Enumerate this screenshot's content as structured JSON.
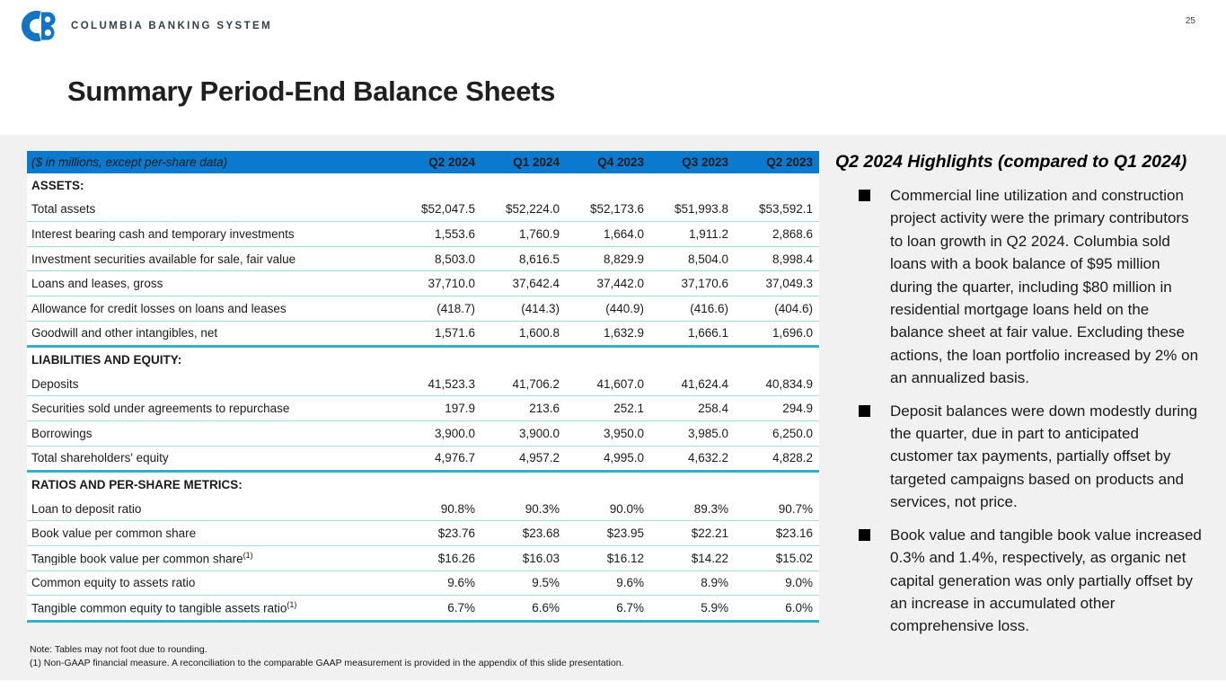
{
  "page": {
    "number": "25"
  },
  "logo": {
    "mark": "CB",
    "text": "COLUMBIA BANKING SYSTEM"
  },
  "title": "Summary Period-End Balance Sheets",
  "colors": {
    "header_blue": "#0b79cd",
    "divider_teal": "#31b2cb",
    "row_divider_blue": "#a6d9ea",
    "logo_blue": "#1474c4",
    "panel_gray": "#f1f1f2",
    "text": "#1b1b1b"
  },
  "table": {
    "unit_note": "($ in millions, except per-share data)",
    "columns": [
      "Q2 2024",
      "Q1 2024",
      "Q4 2023",
      "Q3 2023",
      "Q2 2023"
    ],
    "sections": [
      {
        "label": "ASSETS:",
        "rows": [
          {
            "label": "Total assets",
            "values": [
              "$52,047.5",
              "$52,224.0",
              "$52,173.6",
              "$51,993.8",
              "$53,592.1"
            ]
          },
          {
            "label": "Interest bearing cash and temporary investments",
            "values": [
              "1,553.6",
              "1,760.9",
              "1,664.0",
              "1,911.2",
              "2,868.6"
            ]
          },
          {
            "label": "Investment securities available for sale, fair value",
            "values": [
              "8,503.0",
              "8,616.5",
              "8,829.9",
              "8,504.0",
              "8,998.4"
            ]
          },
          {
            "label": "Loans and leases, gross",
            "values": [
              "37,710.0",
              "37,642.4",
              "37,442.0",
              "37,170.6",
              "37,049.3"
            ]
          },
          {
            "label": "Allowance for credit losses on loans and leases",
            "values": [
              "(418.7)",
              "(414.3)",
              "(440.9)",
              "(416.6)",
              "(404.6)"
            ]
          },
          {
            "label": "Goodwill and other intangibles, net",
            "values": [
              "1,571.6",
              "1,600.8",
              "1,632.9",
              "1,666.1",
              "1,696.0"
            ]
          }
        ]
      },
      {
        "label": "LIABILITIES AND EQUITY:",
        "rows": [
          {
            "label": "Deposits",
            "values": [
              "41,523.3",
              "41,706.2",
              "41,607.0",
              "41,624.4",
              "40,834.9"
            ]
          },
          {
            "label": "Securities sold under agreements to repurchase",
            "values": [
              "197.9",
              "213.6",
              "252.1",
              "258.4",
              "294.9"
            ]
          },
          {
            "label": "Borrowings",
            "values": [
              "3,900.0",
              "3,900.0",
              "3,950.0",
              "3,985.0",
              "6,250.0"
            ]
          },
          {
            "label": "Total shareholders' equity",
            "values": [
              "4,976.7",
              "4,957.2",
              "4,995.0",
              "4,632.2",
              "4,828.2"
            ]
          }
        ]
      },
      {
        "label": "RATIOS AND PER-SHARE METRICS:",
        "rows": [
          {
            "label": "Loan to deposit ratio",
            "values": [
              "90.8%",
              "90.3%",
              "90.0%",
              "89.3%",
              "90.7%"
            ]
          },
          {
            "label": "Book value per common share",
            "values": [
              "$23.76",
              "$23.68",
              "$23.95",
              "$22.21",
              "$23.16"
            ]
          },
          {
            "label": "Tangible book value per common share",
            "sup": "(1)",
            "values": [
              "$16.26",
              "$16.03",
              "$16.12",
              "$14.22",
              "$15.02"
            ]
          },
          {
            "label": "Common equity to assets ratio",
            "values": [
              "9.6%",
              "9.5%",
              "9.6%",
              "8.9%",
              "9.0%"
            ]
          },
          {
            "label": "Tangible common equity to tangible assets ratio",
            "sup": "(1)",
            "values": [
              "6.7%",
              "6.6%",
              "6.7%",
              "5.9%",
              "6.0%"
            ]
          }
        ]
      }
    ]
  },
  "footnotes": [
    "Note: Tables may not foot due to rounding.",
    "(1)   Non-GAAP financial measure.  A reconciliation to the comparable GAAP measurement is provided in the appendix of this slide presentation."
  ],
  "highlights": {
    "heading": "Q2 2024 Highlights (compared to Q1 2024)",
    "bullets": [
      "Commercial line utilization and construction project activity were the primary contributors to loan growth in Q2 2024. Columbia sold loans with a book balance of $95 million during the quarter, including $80 million in residential mortgage loans held on the balance sheet at fair value. Excluding these actions, the loan portfolio increased by 2% on an annualized basis.",
      "Deposit balances were down modestly during the quarter, due in part to anticipated customer tax payments, partially offset by targeted campaigns based on products and services, not price.",
      "Book value and tangible book value increased 0.3% and 1.4%, respectively, as organic net capital generation was only partially offset by an increase in accumulated other comprehensive loss."
    ]
  }
}
